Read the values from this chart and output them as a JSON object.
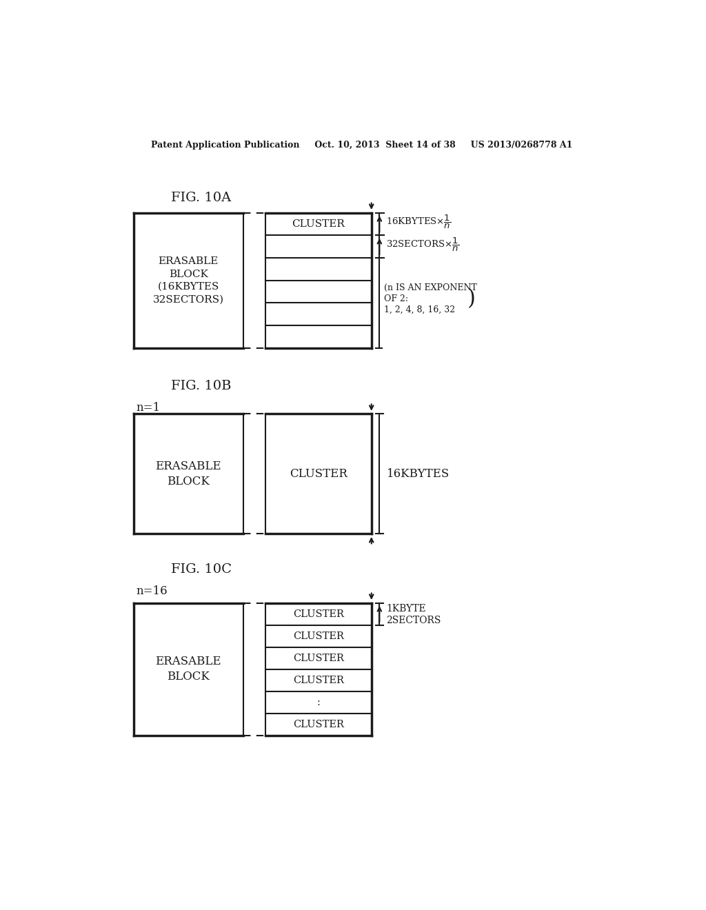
{
  "bg_color": "#ffffff",
  "header_text": "Patent Application Publication     Oct. 10, 2013  Sheet 14 of 38     US 2013/0268778 A1",
  "fig10a_label": "FIG. 10A",
  "fig10b_label": "FIG. 10B",
  "fig10c_label": "FIG. 10C",
  "n1_label": "n=1",
  "n16_label": "n=16",
  "erasable_block_text_a": "ERASABLE\nBLOCK\n(16KBYTES\n32SECTORS)",
  "erasable_block_text_b": "ERASABLE\nBLOCK",
  "erasable_block_text_c": "ERASABLE\nBLOCK",
  "cluster_text": "CLUSTER",
  "clusters_c": [
    "CLUSTER",
    "CLUSTER",
    "CLUSTER",
    "CLUSTER",
    ":",
    "CLUSTER"
  ],
  "annotation_16kbytes": "16KBYTES",
  "annotation_1kbyte": "1KBYTE\n2SECTORS"
}
